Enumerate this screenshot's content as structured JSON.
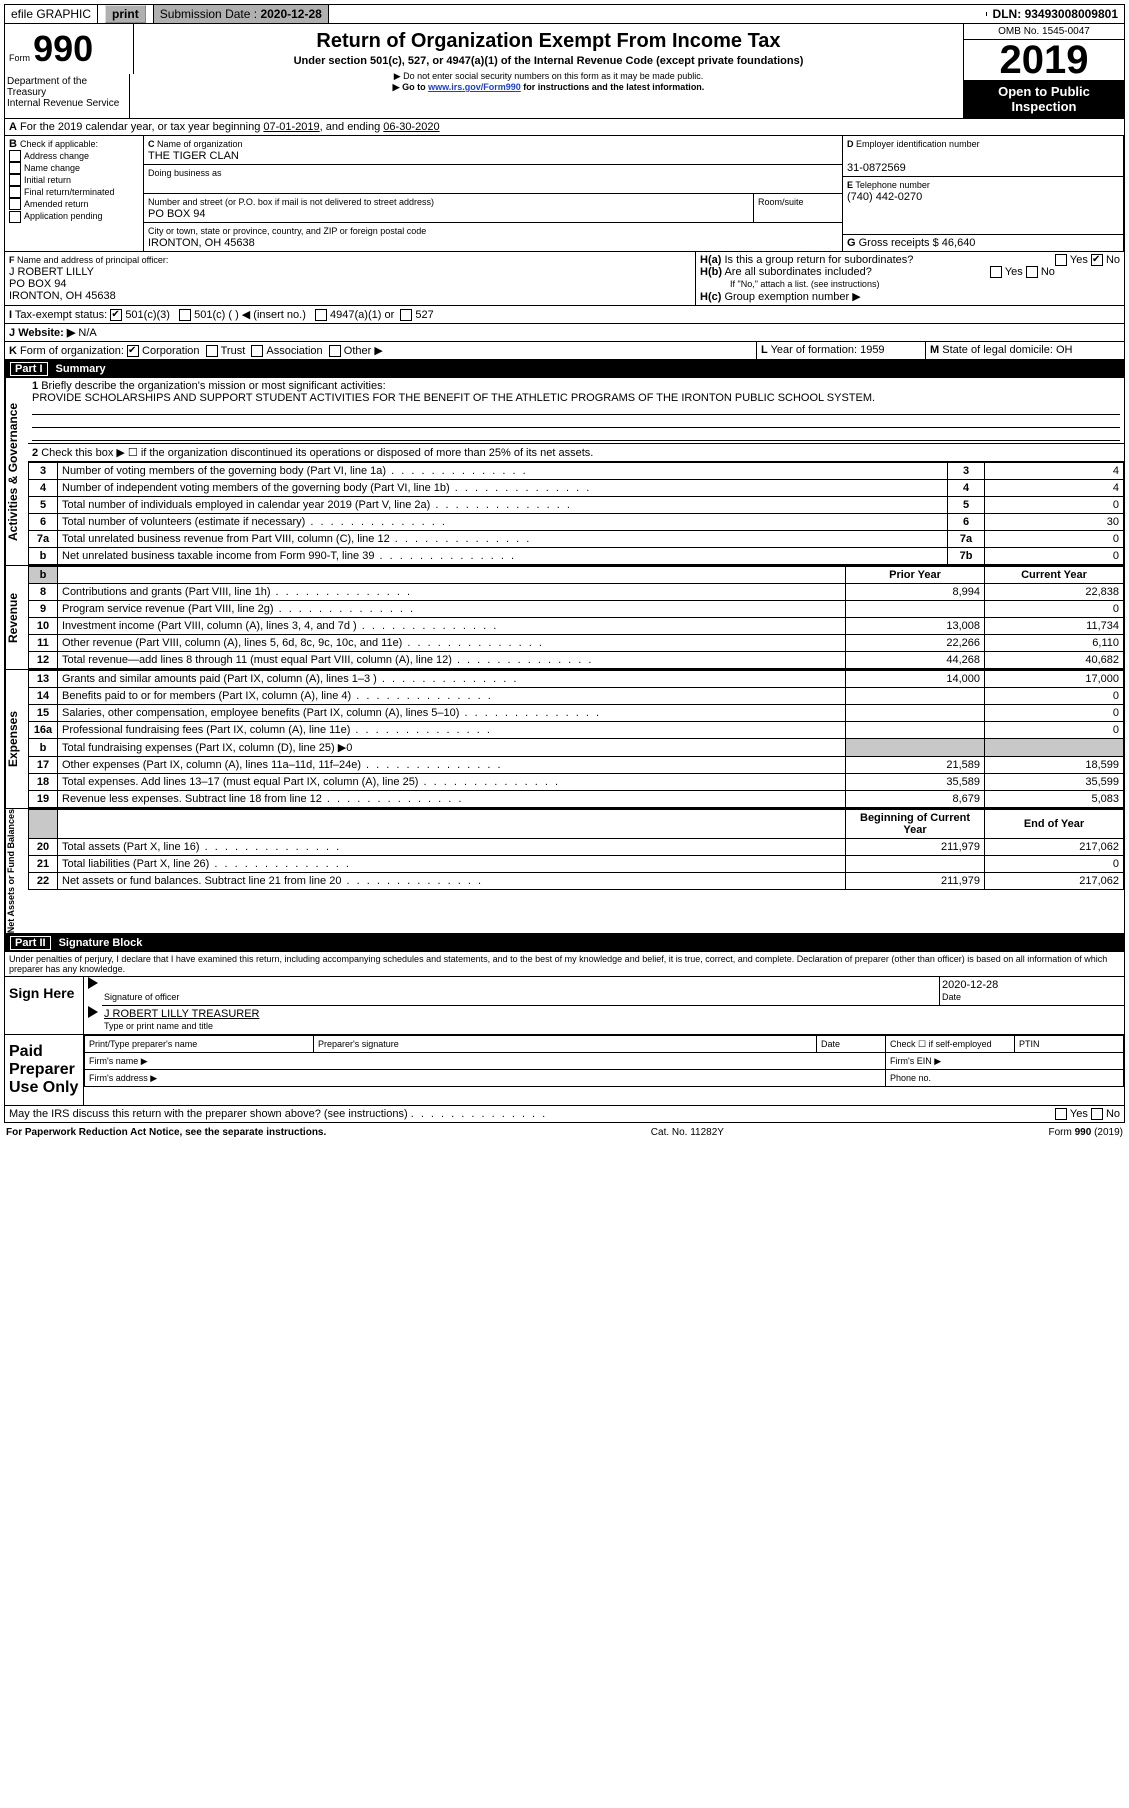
{
  "topbar": {
    "efile": "efile GRAPHIC",
    "print": "print",
    "subdate_label": "Submission Date :",
    "subdate": "2020-12-28",
    "dln_label": "DLN:",
    "dln": "93493008009801"
  },
  "header": {
    "form_label": "Form",
    "form_no": "990",
    "title": "Return of Organization Exempt From Income Tax",
    "subtitle": "Under section 501(c), 527, or 4947(a)(1) of the Internal Revenue Code (except private foundations)",
    "note1": "▶ Do not enter social security numbers on this form as it may be made public.",
    "note2_pre": "▶ Go to ",
    "note2_link": "www.irs.gov/Form990",
    "note2_post": " for instructions and the latest information.",
    "omb": "OMB No. 1545-0047",
    "year": "2019",
    "open": "Open to Public Inspection",
    "dept": "Department of the Treasury\nInternal Revenue Service"
  },
  "lineA": {
    "text_pre": "For the 2019 calendar year, or tax year beginning ",
    "begin": "07-01-2019",
    "text_mid": ", and ending ",
    "end": "06-30-2020"
  },
  "B": {
    "label": "Check if applicable:",
    "opts": [
      "Address change",
      "Name change",
      "Initial return",
      "Final return/terminated",
      "Amended return",
      "Application pending"
    ]
  },
  "C": {
    "name_label": "Name of organization",
    "name": "THE TIGER CLAN",
    "dba_label": "Doing business as",
    "addr_label": "Number and street (or P.O. box if mail is not delivered to street address)",
    "room_label": "Room/suite",
    "addr": "PO BOX 94",
    "city_label": "City or town, state or province, country, and ZIP or foreign postal code",
    "city": "IRONTON, OH  45638"
  },
  "D": {
    "label": "Employer identification number",
    "val": "31-0872569"
  },
  "E": {
    "label": "Telephone number",
    "val": "(740) 442-0270"
  },
  "G": {
    "label": "Gross receipts $",
    "val": "46,640"
  },
  "F": {
    "label": "Name and address of principal officer:",
    "name": "J ROBERT LILLY",
    "addr": "PO BOX 94",
    "city": "IRONTON, OH  45638"
  },
  "H": {
    "a": "Is this a group return for subordinates?",
    "b": "Are all subordinates included?",
    "b_note": "If \"No,\" attach a list. (see instructions)",
    "c": "Group exemption number ▶",
    "a_ans": "No"
  },
  "I": {
    "label": "Tax-exempt status:",
    "c3": "501(c)(3)",
    "c": "501(c) (  ) ◀ (insert no.)",
    "a": "4947(a)(1) or",
    "s": "527"
  },
  "J": {
    "label": "Website: ▶",
    "val": "N/A"
  },
  "K": {
    "label": "Form of organization:",
    "opts": [
      "Corporation",
      "Trust",
      "Association",
      "Other ▶"
    ],
    "checked": "Corporation"
  },
  "L": {
    "label": "Year of formation:",
    "val": "1959"
  },
  "M": {
    "label": "State of legal domicile:",
    "val": "OH"
  },
  "part1": {
    "title": "Part I",
    "name": "Summary",
    "line1_label": "Briefly describe the organization's mission or most significant activities:",
    "mission": "PROVIDE SCHOLARSHIPS AND SUPPORT STUDENT ACTIVITIES FOR THE BENEFIT OF THE ATHLETIC PROGRAMS OF THE IRONTON PUBLIC SCHOOL SYSTEM.",
    "line2": "Check this box ▶ ☐  if the organization discontinued its operations or disposed of more than 25% of its net assets.",
    "prior_hdr": "Prior Year",
    "curr_hdr": "Current Year",
    "beg_hdr": "Beginning of Current Year",
    "end_hdr": "End of Year"
  },
  "activities_rows": [
    {
      "n": "3",
      "t": "Number of voting members of the governing body (Part VI, line 1a)",
      "box": "3",
      "v": "4"
    },
    {
      "n": "4",
      "t": "Number of independent voting members of the governing body (Part VI, line 1b)",
      "box": "4",
      "v": "4"
    },
    {
      "n": "5",
      "t": "Total number of individuals employed in calendar year 2019 (Part V, line 2a)",
      "box": "5",
      "v": "0"
    },
    {
      "n": "6",
      "t": "Total number of volunteers (estimate if necessary)",
      "box": "6",
      "v": "30"
    },
    {
      "n": "7a",
      "t": "Total unrelated business revenue from Part VIII, column (C), line 12",
      "box": "7a",
      "v": "0"
    },
    {
      "n": "b",
      "t": "Net unrelated business taxable income from Form 990-T, line 39",
      "box": "7b",
      "v": "0"
    }
  ],
  "revenue_rows": [
    {
      "n": "8",
      "t": "Contributions and grants (Part VIII, line 1h)",
      "p": "8,994",
      "c": "22,838"
    },
    {
      "n": "9",
      "t": "Program service revenue (Part VIII, line 2g)",
      "p": "",
      "c": "0"
    },
    {
      "n": "10",
      "t": "Investment income (Part VIII, column (A), lines 3, 4, and 7d )",
      "p": "13,008",
      "c": "11,734"
    },
    {
      "n": "11",
      "t": "Other revenue (Part VIII, column (A), lines 5, 6d, 8c, 9c, 10c, and 11e)",
      "p": "22,266",
      "c": "6,110"
    },
    {
      "n": "12",
      "t": "Total revenue—add lines 8 through 11 (must equal Part VIII, column (A), line 12)",
      "p": "44,268",
      "c": "40,682"
    }
  ],
  "expense_rows": [
    {
      "n": "13",
      "t": "Grants and similar amounts paid (Part IX, column (A), lines 1–3 )",
      "p": "14,000",
      "c": "17,000"
    },
    {
      "n": "14",
      "t": "Benefits paid to or for members (Part IX, column (A), line 4)",
      "p": "",
      "c": "0"
    },
    {
      "n": "15",
      "t": "Salaries, other compensation, employee benefits (Part IX, column (A), lines 5–10)",
      "p": "",
      "c": "0"
    },
    {
      "n": "16a",
      "t": "Professional fundraising fees (Part IX, column (A), line 11e)",
      "p": "",
      "c": "0"
    },
    {
      "n": "b",
      "t": "Total fundraising expenses (Part IX, column (D), line 25) ▶0",
      "grey": true
    },
    {
      "n": "17",
      "t": "Other expenses (Part IX, column (A), lines 11a–11d, 11f–24e)",
      "p": "21,589",
      "c": "18,599"
    },
    {
      "n": "18",
      "t": "Total expenses. Add lines 13–17 (must equal Part IX, column (A), line 25)",
      "p": "35,589",
      "c": "35,599"
    },
    {
      "n": "19",
      "t": "Revenue less expenses. Subtract line 18 from line 12",
      "p": "8,679",
      "c": "5,083"
    }
  ],
  "net_rows": [
    {
      "n": "20",
      "t": "Total assets (Part X, line 16)",
      "p": "211,979",
      "c": "217,062"
    },
    {
      "n": "21",
      "t": "Total liabilities (Part X, line 26)",
      "p": "",
      "c": "0"
    },
    {
      "n": "22",
      "t": "Net assets or fund balances. Subtract line 21 from line 20",
      "p": "211,979",
      "c": "217,062"
    }
  ],
  "part2": {
    "title": "Part II",
    "name": "Signature Block",
    "decl": "Under penalties of perjury, I declare that I have examined this return, including accompanying schedules and statements, and to the best of my knowledge and belief, it is true, correct, and complete. Declaration of preparer (other than officer) is based on all information of which preparer has any knowledge.",
    "sign_here": "Sign Here",
    "sig_officer": "Signature of officer",
    "date": "Date",
    "date_val": "2020-12-28",
    "officer_name": "J ROBERT LILLY TREASURER",
    "type_name": "Type or print name and title",
    "paid": "Paid Preparer Use Only",
    "prep_name": "Print/Type preparer's name",
    "prep_sig": "Preparer's signature",
    "check_self": "Check ☐ if self-employed",
    "ptin": "PTIN",
    "firm_name": "Firm's name  ▶",
    "firm_ein": "Firm's EIN ▶",
    "firm_addr": "Firm's address ▶",
    "phone": "Phone no.",
    "discuss": "May the IRS discuss this return with the preparer shown above? (see instructions)"
  },
  "footer": {
    "left": "For Paperwork Reduction Act Notice, see the separate instructions.",
    "mid": "Cat. No. 11282Y",
    "right": "Form 990 (2019)"
  },
  "vlabels": {
    "ag": "Activities & Governance",
    "rev": "Revenue",
    "exp": "Expenses",
    "net": "Net Assets or Fund Balances"
  }
}
